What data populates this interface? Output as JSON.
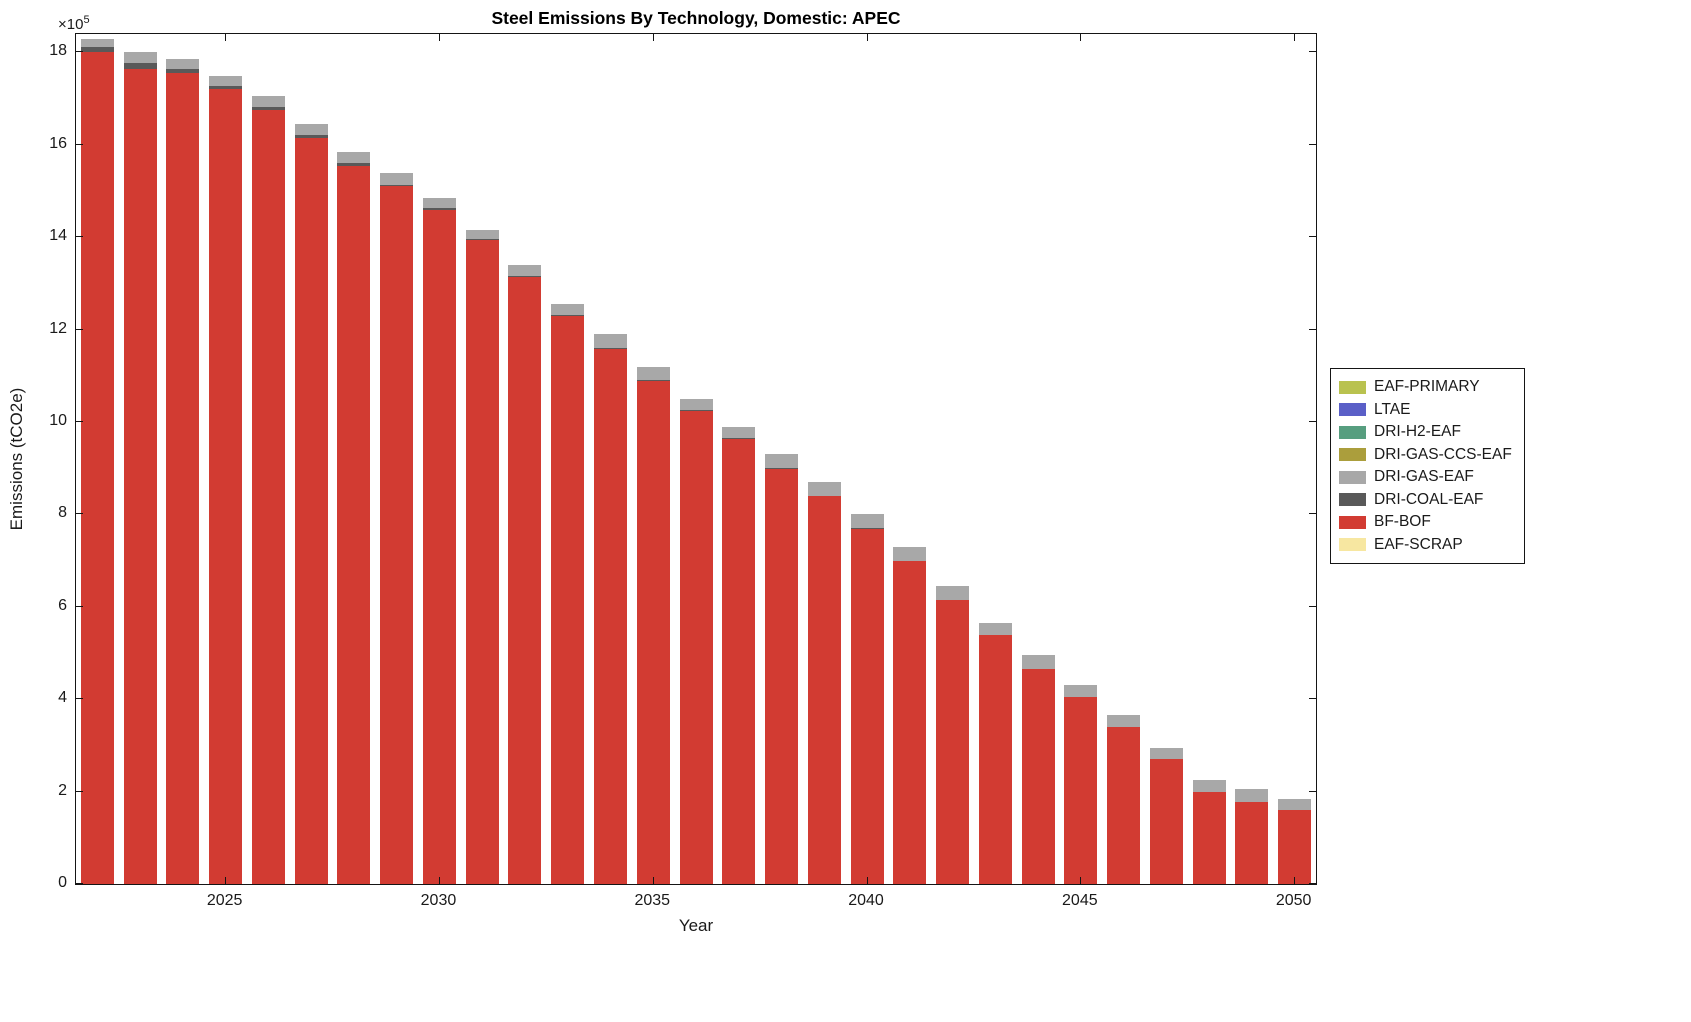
{
  "chart_data": {
    "type": "bar",
    "stacked": true,
    "title": "Steel Emissions By Technology, Domestic: APEC",
    "xlabel": "Year",
    "ylabel": "Emissions (tCO2e)",
    "y_multiplier_base": "×10",
    "y_multiplier_exp": "5",
    "value_unit": "1e5 tCO2e",
    "ylim": [
      0,
      18.4
    ],
    "yticks": [
      0,
      2,
      4,
      6,
      8,
      10,
      12,
      14,
      16,
      18
    ],
    "ytick_labels": [
      "0",
      "2",
      "4",
      "6",
      "8",
      "10",
      "12",
      "14",
      "16",
      "18"
    ],
    "xticks": [
      2025,
      2030,
      2035,
      2040,
      2045,
      2050
    ],
    "xtick_labels": [
      "2025",
      "2030",
      "2035",
      "2040",
      "2045",
      "2050"
    ],
    "categories": [
      2022,
      2023,
      2024,
      2025,
      2026,
      2027,
      2028,
      2029,
      2030,
      2031,
      2032,
      2033,
      2034,
      2035,
      2036,
      2037,
      2038,
      2039,
      2040,
      2041,
      2042,
      2043,
      2044,
      2045,
      2046,
      2047,
      2048,
      2049,
      2050
    ],
    "legend_position": "right-outside",
    "grid": false,
    "series": [
      {
        "name": "EAF-PRIMARY",
        "color": "#b9c24f",
        "values": [
          0,
          0,
          0,
          0,
          0,
          0,
          0,
          0,
          0,
          0,
          0,
          0,
          0,
          0,
          0,
          0,
          0,
          0,
          0,
          0,
          0,
          0,
          0,
          0,
          0,
          0,
          0,
          0,
          0
        ]
      },
      {
        "name": "LTAE",
        "color": "#5a5fc7",
        "values": [
          0,
          0,
          0,
          0,
          0,
          0,
          0,
          0,
          0,
          0,
          0,
          0,
          0,
          0,
          0,
          0,
          0,
          0,
          0,
          0,
          0,
          0,
          0,
          0,
          0,
          0,
          0,
          0,
          0
        ]
      },
      {
        "name": "DRI-H2-EAF",
        "color": "#579e7f",
        "values": [
          0,
          0,
          0,
          0,
          0,
          0,
          0,
          0,
          0,
          0,
          0,
          0,
          0,
          0,
          0,
          0,
          0,
          0,
          0,
          0,
          0,
          0,
          0,
          0,
          0,
          0,
          0,
          0,
          0
        ]
      },
      {
        "name": "DRI-GAS-CCS-EAF",
        "color": "#ab9e3c",
        "values": [
          0,
          0,
          0,
          0,
          0,
          0,
          0,
          0,
          0,
          0,
          0,
          0,
          0,
          0,
          0,
          0,
          0,
          0,
          0,
          0,
          0,
          0,
          0,
          0,
          0,
          0,
          0,
          0,
          0
        ]
      },
      {
        "name": "DRI-GAS-EAF",
        "color": "#a8a8a8",
        "values": [
          0.18,
          0.23,
          0.2,
          0.22,
          0.23,
          0.24,
          0.25,
          0.26,
          0.22,
          0.18,
          0.23,
          0.24,
          0.29,
          0.29,
          0.24,
          0.24,
          0.29,
          0.29,
          0.29,
          0.3,
          0.3,
          0.25,
          0.3,
          0.25,
          0.25,
          0.25,
          0.25,
          0.27,
          0.25
        ]
      },
      {
        "name": "DRI-COAL-EAF",
        "color": "#595959",
        "values": [
          0.12,
          0.12,
          0.1,
          0.08,
          0.07,
          0.06,
          0.05,
          0.04,
          0.03,
          0.02,
          0.02,
          0.01,
          0.01,
          0.01,
          0.01,
          0.01,
          0.01,
          0.01,
          0.01,
          0,
          0,
          0,
          0,
          0,
          0,
          0,
          0,
          0,
          0
        ]
      },
      {
        "name": "BF-BOF",
        "color": "#d23b32",
        "values": [
          18.0,
          17.65,
          17.55,
          17.2,
          16.75,
          16.15,
          15.55,
          15.1,
          14.6,
          13.95,
          13.15,
          12.3,
          11.6,
          10.9,
          10.25,
          9.65,
          9.0,
          8.4,
          7.7,
          7.0,
          6.15,
          5.4,
          4.65,
          4.05,
          3.4,
          2.7,
          2.0,
          1.78,
          1.6
        ]
      },
      {
        "name": "EAF-SCRAP",
        "color": "#f7e7a1",
        "values": [
          0,
          0,
          0,
          0,
          0,
          0,
          0,
          0,
          0,
          0,
          0,
          0,
          0,
          0,
          0,
          0,
          0,
          0,
          0,
          0,
          0,
          0,
          0,
          0,
          0,
          0,
          0,
          0,
          0
        ]
      }
    ]
  }
}
